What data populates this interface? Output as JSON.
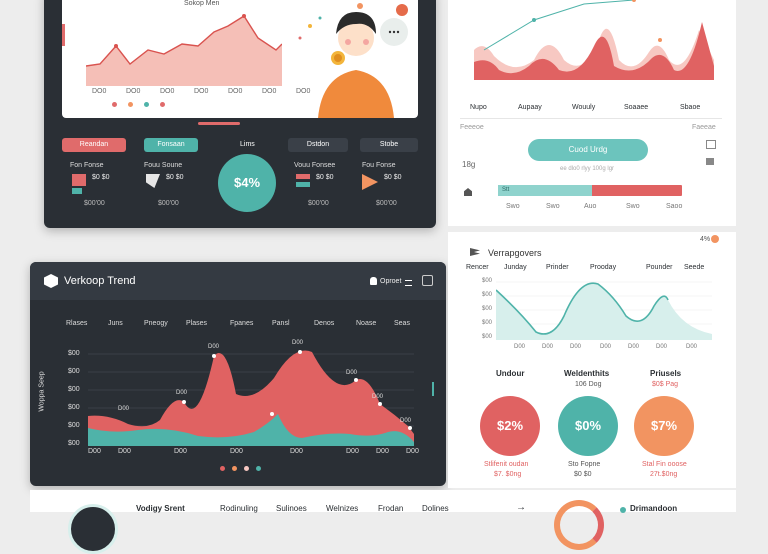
{
  "top_left_card": {
    "chart_title": "Sokop Men",
    "chart_x_labels": [
      "DO0",
      "DO0",
      "DO0",
      "DO0",
      "DO0",
      "DO0",
      "DO0"
    ],
    "pills": [
      {
        "label": "Reandan",
        "color": "#e06b6b"
      },
      {
        "label": "Fonsaan",
        "color": "#4fb3a9"
      },
      {
        "label": "Lims",
        "color": "#2a2f35"
      },
      {
        "label": "Dstdon",
        "color": "#3a4048"
      },
      {
        "label": "Stobe",
        "color": "#3a4048"
      }
    ],
    "stat_cols": [
      {
        "title": "Fon Fonse",
        "value": "$0 $0",
        "foot": "$00'00"
      },
      {
        "title": "Fouu Soune",
        "value": "$0 $0",
        "foot": "$00'00"
      },
      {
        "title": "Vouu Fonsee",
        "value": "$0 $0",
        "foot": "$00'00"
      },
      {
        "title": "Fou Fonse",
        "value": "$0 $0",
        "foot": "$00'00"
      }
    ],
    "center_circle": "$4%"
  },
  "top_right_panel": {
    "x_labels": [
      "Nupo",
      "Aupaay",
      "Wouuly",
      "Soaaee",
      "Sbaoe"
    ],
    "button_label": "Cuod Urdg",
    "small_label": "18g",
    "caption": "ee dlo0 rlyy 100g lgr",
    "header_left": "Feeeoe",
    "header_right": "Faeeae",
    "bar_ticks": [
      "Swo",
      "Swo",
      "Auo",
      "Swo",
      "Saoo"
    ],
    "bar_left_label": "Stt"
  },
  "mid_left_card": {
    "title": "Verkoop Trend",
    "header_right": "Oproet",
    "columns": [
      "Rlases",
      "Juns",
      "Pneogy",
      "Plases",
      "Fpanes",
      "Pansl",
      "Denos",
      "Noase",
      "Seas"
    ],
    "y_label": "Woppa Seep",
    "y_ticks": [
      "$00",
      "$00",
      "$00",
      "$00",
      "$00",
      "$00"
    ],
    "x_labels": [
      "D00",
      "D00",
      "D00",
      "D00",
      "D00",
      "D00",
      "D00",
      "D00"
    ],
    "peak_labels": [
      "D00",
      "D00",
      "D00",
      "D00",
      "D00",
      "D00",
      "D00"
    ]
  },
  "mid_right_panel": {
    "title": "Verrapgovers",
    "badge": "4%",
    "columns": [
      "Rencer",
      "Junday",
      "Prinder",
      "Prooday",
      "Pounder",
      "Seede"
    ],
    "y_ticks": [
      "$00",
      "$00",
      "$00",
      "$00",
      "$00"
    ],
    "x_ticks": [
      "D00",
      "D00",
      "D00",
      "D00",
      "D00",
      "D00",
      "D00"
    ],
    "kpis": [
      {
        "title": "Undour",
        "sub": "",
        "value": "$2%",
        "foot": "",
        "foot2": "",
        "color": "#e06262"
      },
      {
        "title": "Weldenthits",
        "sub": "106 Dog",
        "value": "$0%",
        "foot": "Sto Fopne",
        "foot2": "$0 $0",
        "color": "#4fb3a9"
      },
      {
        "title": "Priusels",
        "sub": "$0$ Pag",
        "value": "$7%",
        "foot": "Stal Fin ooose",
        "foot2": "27t.$0ng",
        "color": "#f29461"
      }
    ],
    "kpi0_foot": "Stlifenit oudan",
    "kpi0_foot2": "$7. $0ng"
  },
  "bottom_row": {
    "title": "Vodigy Srent",
    "items": [
      "Rodinuling",
      "Sulinoes",
      "Welnizes",
      "Frodan",
      "Dolines"
    ],
    "right_label": "Drimandoon"
  }
}
